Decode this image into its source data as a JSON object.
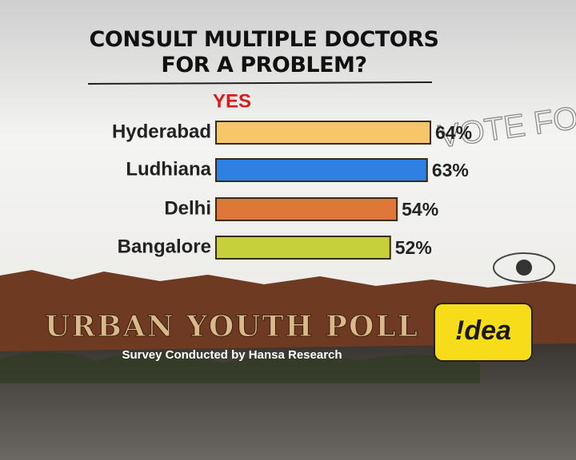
{
  "chart_data": {
    "type": "bar",
    "orientation": "horizontal",
    "title": "CONSULT MULTIPLE DOCTORS FOR A PROBLEM?",
    "subtitle": "YES",
    "categories": [
      "Hyderabad",
      "Ludhiana",
      "Delhi",
      "Bangalore"
    ],
    "values": [
      64,
      63,
      54,
      52
    ],
    "value_labels": [
      "64%",
      "63%",
      "54%",
      "52%"
    ],
    "colors": [
      "#f8c66a",
      "#2f80e3",
      "#e0773a",
      "#c6d03a"
    ]
  },
  "sketch": "VOTE FOR",
  "footer": {
    "title": "URBAN YOUTH POLL",
    "credit": "Survey Conducted by Hansa Research",
    "logo": "!dea"
  }
}
